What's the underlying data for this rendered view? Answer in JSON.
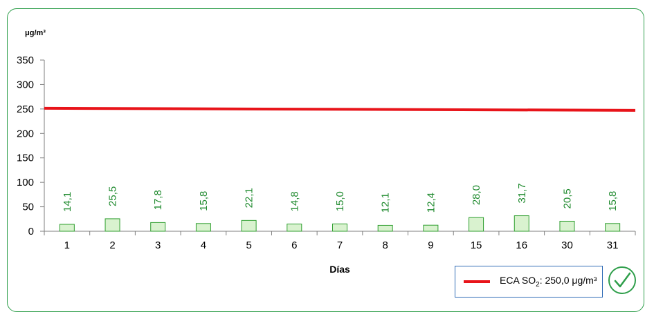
{
  "chart_data": {
    "type": "bar",
    "unit_label": "μg/m³",
    "xlabel": "Días",
    "ylim": [
      0,
      350
    ],
    "yticks": [
      "0",
      "50",
      "100",
      "150",
      "200",
      "250",
      "300",
      "350"
    ],
    "categories": [
      "1",
      "2",
      "3",
      "4",
      "5",
      "6",
      "7",
      "8",
      "9",
      "15",
      "16",
      "30",
      "31"
    ],
    "values": [
      14.1,
      25.5,
      17.8,
      15.8,
      22.1,
      14.8,
      15.0,
      12.1,
      12.4,
      28.0,
      31.7,
      20.5,
      15.8
    ],
    "value_labels": [
      "14,1",
      "25,5",
      "17,8",
      "15,8",
      "22,1",
      "14,8",
      "15,0",
      "12,1",
      "12,4",
      "28,0",
      "31,7",
      "20,5",
      "15,8"
    ],
    "reference_line": {
      "value": 250.0,
      "color": "#e8141a"
    },
    "bar_fill": "#d9f2cf",
    "bar_stroke": "#2e9e2e",
    "label_color": "#1f8a2e"
  },
  "legend": {
    "prefix": "ECA SO",
    "subscript": "2",
    "suffix": ": 250,0  μg/m³"
  },
  "status_icon": "check-circle-icon"
}
